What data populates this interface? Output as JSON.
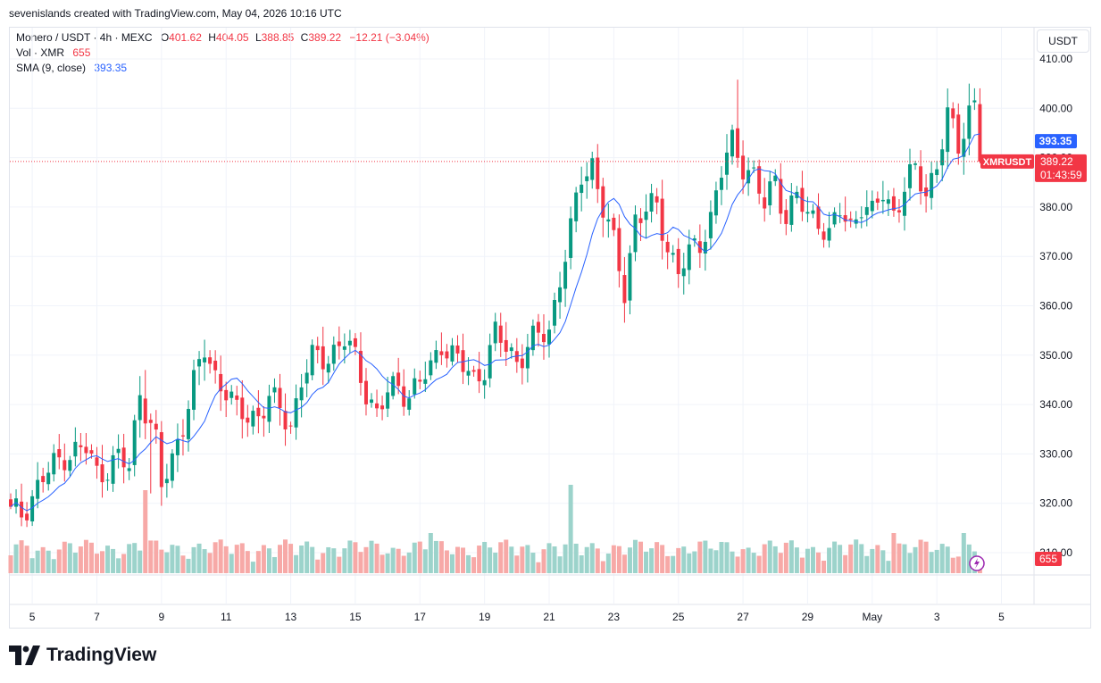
{
  "header": {
    "caption": "sevenislands created with TradingView.com, May 04, 2026 10:16 UTC"
  },
  "legend": {
    "symbol": "Monero / USDT · 4h · MEXC",
    "o_label": "O",
    "o": "401.62",
    "h_label": "H",
    "h": "404.05",
    "l_label": "L",
    "l": "388.85",
    "c_label": "C",
    "c": "389.22",
    "change": "−12.21 (−3.04%)",
    "vol_label": "Vol · XMR",
    "vol_value": "655",
    "sma_label": "SMA (9, close)",
    "sma_value": "393.35"
  },
  "currency": "USDT",
  "price_badges": {
    "sma": "393.35",
    "symbol": "XMRUSDT",
    "last": "389.22",
    "countdown": "01:43:59",
    "volume": "655"
  },
  "brand": {
    "name": "TradingView"
  },
  "colors": {
    "up": "#089981",
    "down": "#f23645",
    "sma": "#2962ff",
    "up_vol": "#9cd3cb",
    "down_vol": "#f7a9a7"
  },
  "chart_data": {
    "type": "candlestick",
    "interval": "4h",
    "y_ticks": [
      "410.00",
      "400.00",
      "390.00",
      "380.00",
      "370.00",
      "360.00",
      "350.00",
      "340.00",
      "330.00",
      "320.00",
      "310.00"
    ],
    "y_tick_values": [
      410,
      400,
      390,
      380,
      370,
      360,
      350,
      340,
      330,
      320,
      310
    ],
    "ylim": [
      306,
      412
    ],
    "x_ticks": [
      "5",
      "7",
      "9",
      "11",
      "13",
      "15",
      "17",
      "19",
      "21",
      "23",
      "25",
      "27",
      "29",
      "May",
      "3",
      "5"
    ],
    "x_tick_index": [
      4,
      16,
      28,
      40,
      52,
      64,
      76,
      88,
      100,
      112,
      124,
      136,
      148,
      160,
      172,
      184
    ],
    "last_price": 389.22,
    "sma_last": 393.35,
    "keyframes": [
      [
        0,
        318
      ],
      [
        2,
        318
      ],
      [
        6,
        325
      ],
      [
        10,
        330
      ],
      [
        14,
        331
      ],
      [
        16,
        326
      ],
      [
        20,
        329
      ],
      [
        22,
        327
      ],
      [
        24,
        343
      ],
      [
        26,
        336
      ],
      [
        27,
        332
      ],
      [
        28,
        323
      ],
      [
        30,
        329
      ],
      [
        34,
        344
      ],
      [
        36,
        351
      ],
      [
        38,
        346
      ],
      [
        40,
        343
      ],
      [
        42,
        338
      ],
      [
        46,
        338
      ],
      [
        48,
        341
      ],
      [
        50,
        339
      ],
      [
        52,
        336
      ],
      [
        54,
        345
      ],
      [
        56,
        349
      ],
      [
        59,
        350
      ],
      [
        62,
        353
      ],
      [
        64,
        349
      ],
      [
        66,
        343
      ],
      [
        68,
        338
      ],
      [
        70,
        342
      ],
      [
        72,
        344
      ],
      [
        74,
        342
      ],
      [
        78,
        347
      ],
      [
        80,
        353
      ],
      [
        82,
        350
      ],
      [
        86,
        345
      ],
      [
        88,
        348
      ],
      [
        90,
        354
      ],
      [
        94,
        349
      ],
      [
        96,
        352
      ],
      [
        100,
        355
      ],
      [
        102,
        366
      ],
      [
        104,
        375
      ],
      [
        106,
        386
      ],
      [
        108,
        389
      ],
      [
        110,
        380
      ],
      [
        112,
        372
      ],
      [
        114,
        363
      ],
      [
        116,
        378
      ],
      [
        120,
        380
      ],
      [
        122,
        372
      ],
      [
        124,
        367
      ],
      [
        126,
        370
      ],
      [
        128,
        373
      ],
      [
        130,
        378
      ],
      [
        132,
        387
      ],
      [
        134,
        393
      ],
      [
        136,
        389
      ],
      [
        138,
        386
      ],
      [
        140,
        380
      ],
      [
        142,
        386
      ],
      [
        144,
        378
      ],
      [
        146,
        382
      ],
      [
        148,
        378
      ],
      [
        150,
        378
      ],
      [
        152,
        374
      ],
      [
        154,
        379
      ],
      [
        156,
        376
      ],
      [
        158,
        381
      ],
      [
        160,
        378
      ],
      [
        162,
        383
      ],
      [
        164,
        379
      ],
      [
        166,
        384
      ],
      [
        168,
        387
      ],
      [
        170,
        383
      ],
      [
        172,
        389
      ],
      [
        174,
        398
      ],
      [
        176,
        392
      ],
      [
        178,
        400
      ],
      [
        179,
        401.6
      ],
      [
        180,
        389.2
      ]
    ],
    "volume_bars": 181,
    "volume_last": 655
  }
}
